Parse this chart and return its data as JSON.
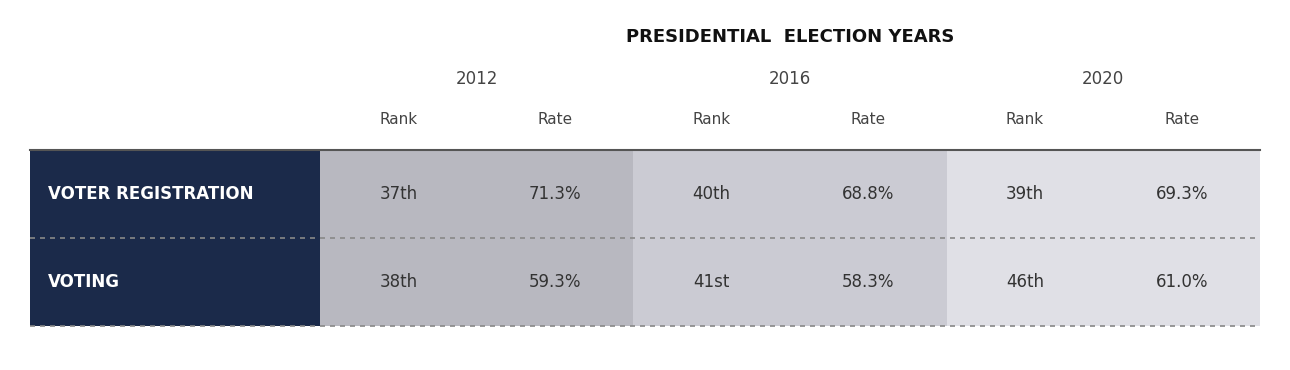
{
  "title": "PRESIDENTIAL  ELECTION YEARS",
  "years": [
    "2012",
    "2016",
    "2020"
  ],
  "col_headers": [
    "Rank",
    "Rate",
    "Rank",
    "Rate",
    "Rank",
    "Rate"
  ],
  "row_labels": [
    "VOTER REGISTRATION",
    "VOTING"
  ],
  "data": [
    [
      "37th",
      "71.3%",
      "40th",
      "68.8%",
      "39th",
      "69.3%"
    ],
    [
      "38th",
      "59.3%",
      "41st",
      "58.3%",
      "46th",
      "61.0%"
    ]
  ],
  "label_bg_color": "#1b2a4a",
  "label_text_color": "#ffffff",
  "data_bg_colors": [
    "#b8b8c0",
    "#cbcbd3",
    "#e0e0e6"
  ],
  "header_text_color": "#444444",
  "data_text_color": "#333333",
  "bg_color": "#ffffff",
  "title_fontsize": 13,
  "year_fontsize": 12,
  "col_header_fontsize": 11,
  "data_fontsize": 12,
  "row_label_fontsize": 12
}
